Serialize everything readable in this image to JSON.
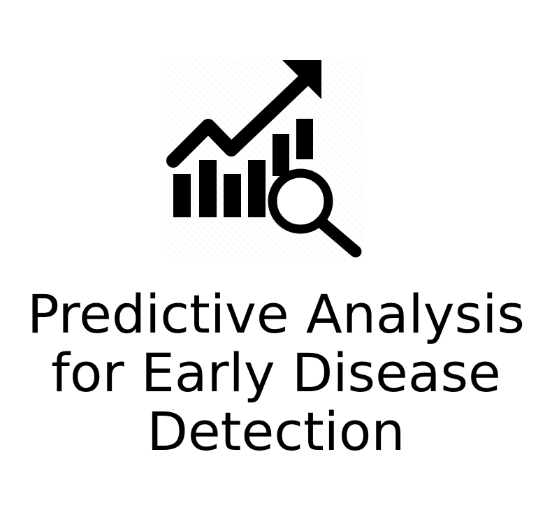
{
  "icon": {
    "name": "chart-analysis-magnifier-icon",
    "color": "#000000"
  },
  "caption": {
    "lines": [
      "Predictive Analysis",
      "for Early Disease",
      "Detection"
    ]
  }
}
